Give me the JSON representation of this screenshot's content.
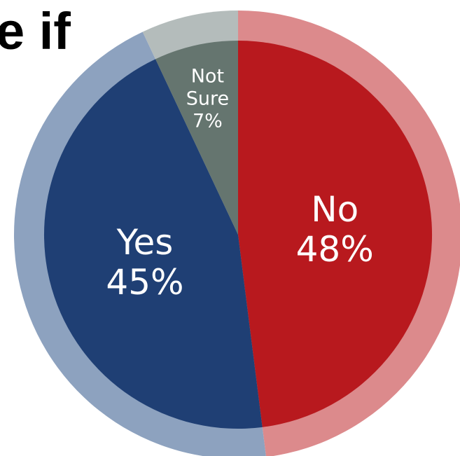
{
  "title_fragment": "e if",
  "chart_data": {
    "type": "pie",
    "slices": [
      {
        "label": "No",
        "value": 48,
        "value_label": "48%",
        "color": "#b8191e",
        "ring_color": "#dc8a8c"
      },
      {
        "label": "Yes",
        "value": 45,
        "value_label": "45%",
        "color": "#1f3f74",
        "ring_color": "#8da2bf"
      },
      {
        "label": "Not Sure",
        "label_lines": [
          "Not",
          "Sure"
        ],
        "value": 7,
        "value_label": "7%",
        "color": "#65756f",
        "ring_color": "#b4bcbb"
      }
    ]
  }
}
